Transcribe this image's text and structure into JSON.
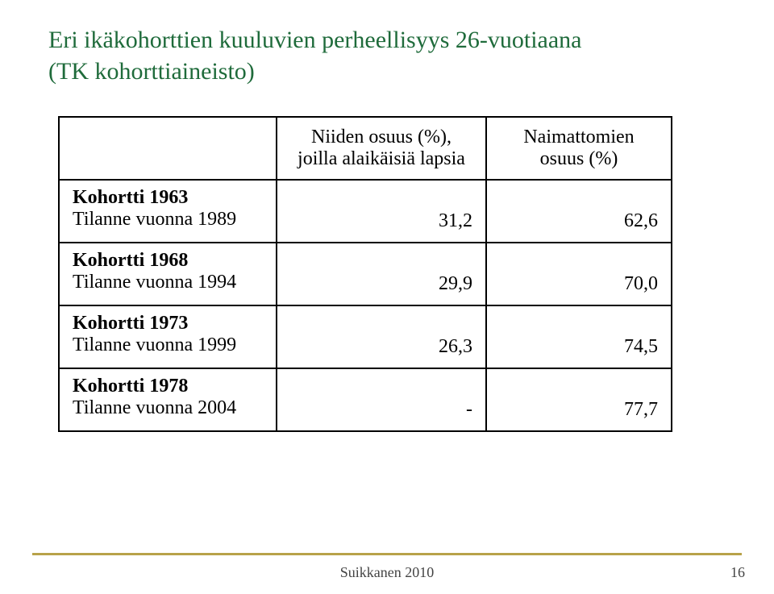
{
  "title_color": "#1f6b3b",
  "title_line1": "Eri ikäkohorttien kuuluvien perheellisyys 26-vuotiaana",
  "title_line2": "(TK kohorttiaineisto)",
  "table": {
    "headers": {
      "col1": "",
      "col2": "Niiden osuus (%), joilla alaikäisiä lapsia",
      "col3": "Naimattomien osuus (%)"
    },
    "rows": [
      {
        "label_bold": "Kohortti 1963",
        "label_plain": "Tilanne vuonna 1989",
        "v1": "31,2",
        "v2": "62,6"
      },
      {
        "label_bold": "Kohortti 1968",
        "label_plain": "Tilanne vuonna 1994",
        "v1": "29,9",
        "v2": "70,0"
      },
      {
        "label_bold": "Kohortti 1973",
        "label_plain": "Tilanne vuonna 1999",
        "v1": "26,3",
        "v2": "74,5"
      },
      {
        "label_bold": "Kohortti 1978",
        "label_plain": "Tilanne vuonna 2004",
        "v1": "-",
        "v2": "77,7"
      }
    ]
  },
  "rule_color": "#b8a24a",
  "footer_text": "Suikkanen 2010",
  "page_number": "16"
}
